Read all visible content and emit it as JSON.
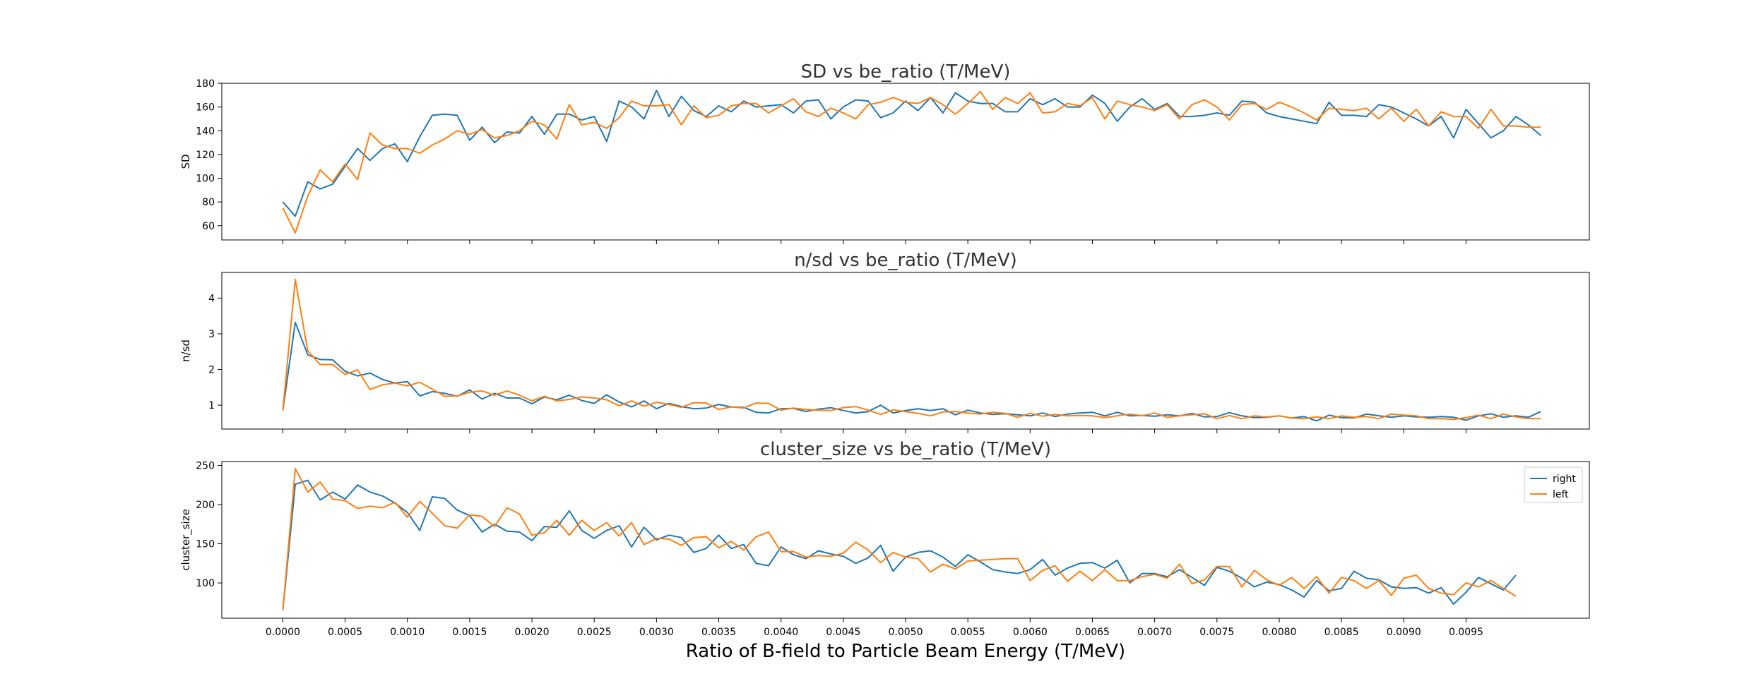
{
  "figure": {
    "xlabel": "Ratio of B-field to Particle Beam Energy (T/MeV)",
    "x_ticks": [
      "0.0000",
      "0.0005",
      "0.0010",
      "0.0015",
      "0.0020",
      "0.0025",
      "0.0030",
      "0.0035",
      "0.0040",
      "0.0045",
      "0.0050",
      "0.0055",
      "0.0060",
      "0.0065",
      "0.0070",
      "0.0075",
      "0.0080",
      "0.0085",
      "0.0090",
      "0.0095"
    ],
    "xlim": [
      -0.00049,
      0.01049
    ],
    "x_start": 0.0,
    "x_step": 0.0001
  },
  "chart_data": [
    {
      "type": "line",
      "title": "SD vs be_ratio (T/MeV)",
      "ylabel": "SD",
      "ylim": [
        48,
        180
      ],
      "yticks": [
        60,
        80,
        100,
        120,
        140,
        160,
        180
      ],
      "grid": false,
      "series": [
        {
          "name": "right",
          "color": "#1f77b4",
          "values": [
            80,
            68,
            97,
            91,
            95,
            110,
            125,
            115,
            125,
            129,
            114,
            135,
            153,
            154,
            153,
            132,
            143,
            130,
            139,
            138,
            152,
            137,
            154,
            154,
            149,
            152,
            131,
            165,
            160,
            150,
            174,
            152,
            169,
            157,
            152,
            161,
            156,
            165,
            160,
            161,
            162,
            155,
            165,
            166,
            150,
            160,
            166,
            165,
            151,
            155,
            165,
            157,
            168,
            155,
            172,
            165,
            163,
            163,
            156,
            156,
            167,
            162,
            167,
            160,
            160,
            170,
            163,
            148,
            160,
            167,
            158,
            163,
            152,
            152,
            153,
            155,
            153,
            165,
            164,
            155,
            152,
            150,
            148,
            146,
            164,
            153,
            153,
            152,
            162,
            160,
            155,
            150,
            144,
            152,
            134,
            158,
            146,
            134,
            140,
            152,
            145,
            136
          ]
        },
        {
          "name": "left",
          "color": "#ff7f0e",
          "values": [
            75,
            54,
            85,
            107,
            97,
            112,
            99,
            138,
            128,
            125,
            125,
            121,
            128,
            133,
            140,
            137,
            141,
            134,
            136,
            140,
            148,
            145,
            133,
            162,
            145,
            147,
            142,
            151,
            165,
            161,
            161,
            162,
            145,
            161,
            151,
            153,
            161,
            163,
            163,
            155,
            161,
            167,
            156,
            152,
            159,
            155,
            150,
            162,
            164,
            168,
            164,
            163,
            168,
            162,
            154,
            163,
            173,
            158,
            168,
            163,
            172,
            155,
            156,
            163,
            161,
            168,
            150,
            165,
            162,
            160,
            157,
            162,
            150,
            162,
            166,
            160,
            149,
            162,
            163,
            158,
            164,
            160,
            155,
            149,
            159,
            158,
            157,
            159,
            150,
            159,
            148,
            158,
            144,
            156,
            152,
            152,
            142,
            158,
            144,
            144,
            143,
            143
          ]
        }
      ]
    },
    {
      "type": "line",
      "title": "n/sd vs be_ratio (T/MeV)",
      "ylabel": "n/sd",
      "ylim": [
        0.33,
        4.72
      ],
      "yticks": [
        1,
        2,
        3,
        4
      ],
      "grid": false,
      "series": [
        {
          "name": "right",
          "color": "#1f77b4",
          "values": [
            0.85,
            3.32,
            2.41,
            2.28,
            2.27,
            1.95,
            1.82,
            1.9,
            1.72,
            1.62,
            1.66,
            1.26,
            1.38,
            1.33,
            1.25,
            1.43,
            1.17,
            1.33,
            1.2,
            1.2,
            1.04,
            1.23,
            1.15,
            1.28,
            1.13,
            1.05,
            1.29,
            1.09,
            0.95,
            1.12,
            0.9,
            1.05,
            0.96,
            0.9,
            0.92,
            1.02,
            0.95,
            0.94,
            0.8,
            0.78,
            0.9,
            0.91,
            0.82,
            0.89,
            0.93,
            0.85,
            0.78,
            0.82,
            1.0,
            0.78,
            0.85,
            0.9,
            0.85,
            0.9,
            0.73,
            0.86,
            0.78,
            0.74,
            0.76,
            0.73,
            0.7,
            0.78,
            0.68,
            0.75,
            0.78,
            0.8,
            0.7,
            0.8,
            0.7,
            0.71,
            0.69,
            0.73,
            0.7,
            0.77,
            0.67,
            0.68,
            0.79,
            0.7,
            0.65,
            0.66,
            0.7,
            0.64,
            0.68,
            0.56,
            0.72,
            0.65,
            0.64,
            0.75,
            0.7,
            0.66,
            0.7,
            0.67,
            0.66,
            0.68,
            0.66,
            0.58,
            0.7,
            0.76,
            0.66,
            0.7,
            0.66,
            0.82
          ]
        },
        {
          "name": "left",
          "color": "#ff7f0e",
          "values": [
            0.85,
            4.52,
            2.52,
            2.14,
            2.14,
            1.86,
            1.99,
            1.44,
            1.57,
            1.62,
            1.54,
            1.64,
            1.45,
            1.25,
            1.26,
            1.36,
            1.4,
            1.28,
            1.4,
            1.28,
            1.12,
            1.25,
            1.12,
            1.16,
            1.23,
            1.2,
            1.15,
            0.98,
            1.12,
            0.97,
            1.08,
            1.02,
            0.94,
            1.07,
            1.06,
            0.88,
            0.95,
            0.92,
            1.06,
            1.05,
            0.86,
            0.92,
            0.88,
            0.86,
            0.85,
            0.93,
            0.96,
            0.86,
            0.74,
            0.87,
            0.82,
            0.77,
            0.7,
            0.81,
            0.82,
            0.78,
            0.75,
            0.8,
            0.77,
            0.66,
            0.77,
            0.69,
            0.74,
            0.7,
            0.71,
            0.7,
            0.65,
            0.7,
            0.75,
            0.7,
            0.78,
            0.66,
            0.7,
            0.73,
            0.76,
            0.62,
            0.71,
            0.62,
            0.7,
            0.67,
            0.7,
            0.64,
            0.62,
            0.67,
            0.62,
            0.7,
            0.66,
            0.68,
            0.62,
            0.75,
            0.72,
            0.7,
            0.62,
            0.62,
            0.6,
            0.65,
            0.72,
            0.62,
            0.75,
            0.67,
            0.62,
            0.62
          ]
        }
      ]
    },
    {
      "type": "line",
      "title": "cluster_size vs be_ratio (T/MeV)",
      "ylabel": "cluster_size",
      "ylim": [
        55,
        255
      ],
      "yticks": [
        100,
        150,
        200,
        250
      ],
      "grid": false,
      "legend": "top-right",
      "series": [
        {
          "name": "right",
          "color": "#1f77b4",
          "values": [
            65,
            226,
            231,
            206,
            216,
            207,
            225,
            216,
            211,
            202,
            190,
            167,
            210,
            208,
            193,
            186,
            165,
            175,
            166,
            165,
            154,
            172,
            171,
            192,
            167,
            157,
            167,
            173,
            146,
            171,
            155,
            161,
            158,
            139,
            144,
            161,
            144,
            149,
            125,
            122,
            146,
            136,
            131,
            141,
            137,
            134,
            125,
            132,
            148,
            115,
            133,
            139,
            141,
            133,
            121,
            136,
            127,
            117,
            114,
            112,
            117,
            130,
            110,
            119,
            125,
            126,
            119,
            129,
            100,
            112,
            112,
            108,
            117,
            107,
            97,
            120,
            115,
            106,
            95,
            101,
            98,
            91,
            82,
            103,
            90,
            93,
            115,
            106,
            104,
            95,
            93,
            94,
            87,
            94,
            73,
            88,
            107,
            99,
            91,
            110
          ]
        },
        {
          "name": "left",
          "color": "#ff7f0e",
          "values": [
            65,
            246,
            216,
            229,
            207,
            205,
            195,
            198,
            196,
            203,
            184,
            204,
            189,
            173,
            170,
            187,
            185,
            172,
            196,
            188,
            161,
            164,
            180,
            161,
            180,
            167,
            177,
            160,
            177,
            149,
            157,
            156,
            148,
            158,
            159,
            145,
            153,
            142,
            159,
            165,
            140,
            140,
            133,
            135,
            134,
            138,
            152,
            142,
            126,
            139,
            133,
            131,
            114,
            124,
            118,
            128,
            129,
            130,
            131,
            131,
            103,
            116,
            122,
            102,
            115,
            103,
            117,
            103,
            103,
            108,
            111,
            106,
            124,
            99,
            104,
            121,
            121,
            95,
            116,
            104,
            97,
            107,
            93,
            108,
            87,
            107,
            103,
            93,
            103,
            84,
            106,
            110,
            93,
            87,
            85,
            100,
            95,
            103,
            93,
            83
          ]
        }
      ]
    }
  ]
}
